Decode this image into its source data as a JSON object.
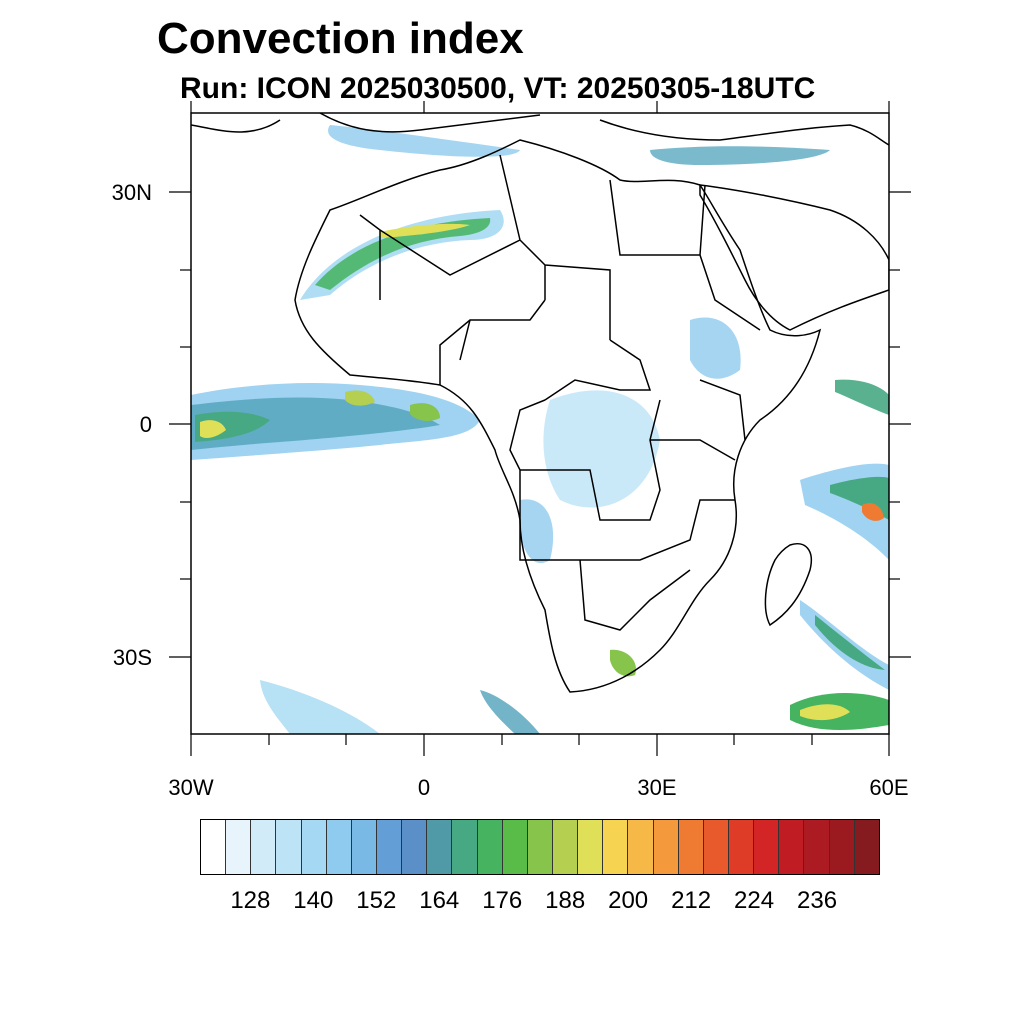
{
  "title": "Convection index",
  "subtitle": "Run: ICON 2025030500,  VT: 20250305-18UTC",
  "map": {
    "lon_range": [
      -30,
      60
    ],
    "lat_range": [
      -40,
      40
    ],
    "x_tick_labels": [
      "30W",
      "0",
      "30E",
      "60E"
    ],
    "y_tick_labels": [
      "30N",
      "0",
      "30S"
    ]
  },
  "colorbar": {
    "colors": [
      "#ffffff",
      "#e8f4fb",
      "#d2ebf8",
      "#bce3f6",
      "#a5d9f3",
      "#8ecbee",
      "#78b9e6",
      "#639fd6",
      "#5a8fc8",
      "#4f9aa6",
      "#47a983",
      "#45b35f",
      "#59bb48",
      "#87c44c",
      "#b5cf50",
      "#e0df58",
      "#f7d352",
      "#f6b846",
      "#f49a3c",
      "#ef7b32",
      "#e85a2b",
      "#df3c27",
      "#d32426",
      "#c01c24",
      "#ad1b22",
      "#9a1a20",
      "#851b1e"
    ],
    "tick_labels": [
      "128",
      "140",
      "152",
      "164",
      "176",
      "188",
      "200",
      "212",
      "224",
      "236"
    ]
  }
}
